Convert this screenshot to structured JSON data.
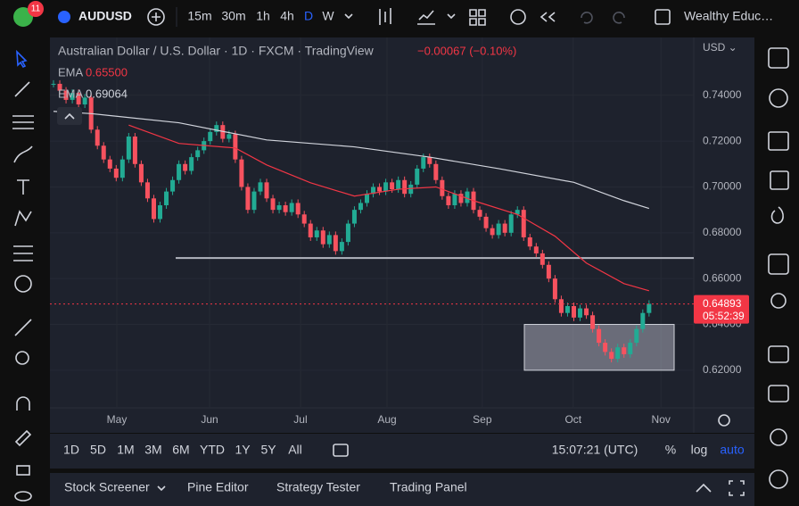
{
  "top_bar": {
    "badge": "11",
    "symbol": "AUDUSD",
    "intervals": [
      "15m",
      "30m",
      "1h",
      "4h",
      "D",
      "W"
    ],
    "account": "Wealthy Educ…"
  },
  "legend": {
    "title": "Australian Dollar / U.S. Dollar · 1D · FXCM · TradingView",
    "change": "−0.00067 (−0.10%)"
  },
  "chart_data": {
    "type": "candlestick",
    "currency": "USD ⌄",
    "up_color": "#22ab94",
    "down_color": "#f7525f",
    "close": [
      0.745,
      0.742,
      0.738,
      0.741,
      0.736,
      0.739,
      0.725,
      0.718,
      0.712,
      0.708,
      0.704,
      0.712,
      0.722,
      0.71,
      0.702,
      0.695,
      0.686,
      0.692,
      0.698,
      0.703,
      0.71,
      0.707,
      0.713,
      0.716,
      0.72,
      0.724,
      0.727,
      0.721,
      0.723,
      0.712,
      0.7,
      0.69,
      0.698,
      0.702,
      0.695,
      0.69,
      0.692,
      0.689,
      0.693,
      0.688,
      0.684,
      0.678,
      0.681,
      0.675,
      0.679,
      0.672,
      0.676,
      0.684,
      0.69,
      0.693,
      0.697,
      0.7,
      0.698,
      0.702,
      0.699,
      0.703,
      0.697,
      0.701,
      0.708,
      0.713,
      0.71,
      0.703,
      0.696,
      0.692,
      0.697,
      0.693,
      0.698,
      0.69,
      0.687,
      0.682,
      0.679,
      0.684,
      0.68,
      0.688,
      0.69,
      0.678,
      0.674,
      0.671,
      0.666,
      0.66,
      0.651,
      0.645,
      0.648,
      0.643,
      0.647,
      0.644,
      0.638,
      0.632,
      0.628,
      0.625,
      0.63,
      0.627,
      0.632,
      0.638,
      0.645,
      0.649
    ],
    "series": [
      {
        "name": "EMA",
        "color": "#f23645",
        "last_value": {
          "value": 0.655,
          "label": "0.65500"
        },
        "x": [
          12,
          20,
          29,
          34,
          41,
          48,
          55,
          61,
          67,
          74,
          80,
          85,
          91,
          95
        ],
        "values": [
          0.727,
          0.719,
          0.717,
          0.7096,
          0.7018,
          0.696,
          0.699,
          0.7,
          0.694,
          0.688,
          0.6785,
          0.6668,
          0.6578,
          0.6547
        ]
      },
      {
        "name": "EMA",
        "color": "#d1d4dc",
        "last_value": {
          "value": 0.69064,
          "label": "0.69064"
        },
        "x": [
          0,
          6,
          20,
          34,
          48,
          60,
          71,
          83,
          91,
          95
        ],
        "values": [
          0.733,
          0.732,
          0.728,
          0.7205,
          0.7175,
          0.713,
          0.708,
          0.702,
          0.694,
          0.6906
        ]
      }
    ],
    "hline": 0.669,
    "box": [
      0.62,
      0.64
    ],
    "last_price": {
      "value": 0.64893,
      "label": "0.64893"
    },
    "countdown": "05:52:39",
    "ylim": [
      0.6036,
      0.766
    ],
    "yticks": [
      {
        "value": 0.62,
        "label": "0.62000"
      },
      {
        "value": 0.64,
        "label": "0.64000"
      },
      {
        "value": 0.66,
        "label": "0.66000"
      },
      {
        "value": 0.68,
        "label": "0.68000"
      },
      {
        "value": 0.7,
        "label": "0.70000"
      },
      {
        "value": 0.72,
        "label": "0.72000"
      },
      {
        "value": 0.74,
        "label": "0.74000"
      }
    ],
    "xticks": [
      {
        "value": 10.1,
        "label": "May"
      },
      {
        "value": 24.9,
        "label": "Jun"
      },
      {
        "value": 39.4,
        "label": "Jul"
      },
      {
        "value": 53.2,
        "label": "Aug"
      },
      {
        "value": 68.4,
        "label": "Sep"
      },
      {
        "value": 82.9,
        "label": "Oct"
      },
      {
        "value": 96.9,
        "label": "Nov"
      }
    ]
  },
  "bottom_bar": {
    "ranges": [
      "1D",
      "5D",
      "1M",
      "3M",
      "6M",
      "YTD",
      "1Y",
      "5Y",
      "All"
    ],
    "clock": "15:07:21 (UTC)",
    "options": [
      "%",
      "log",
      "auto"
    ]
  },
  "panel_tabs": [
    "Stock Screener",
    "Pine Editor",
    "Strategy Tester",
    "Trading Panel"
  ]
}
